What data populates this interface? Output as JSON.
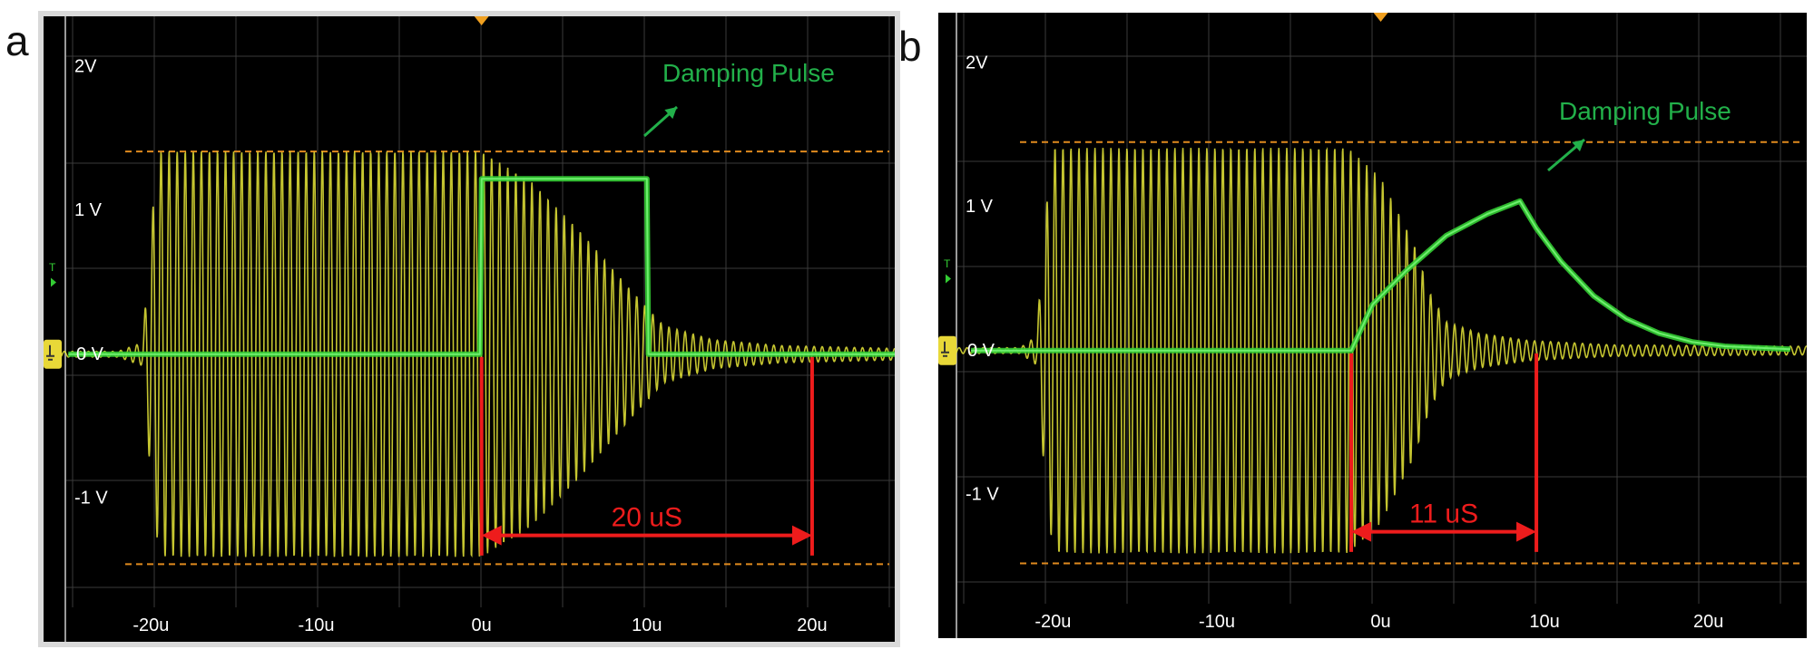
{
  "panels": [
    {
      "letter": "a",
      "annotation": "Damping Pulse",
      "span_label": "20 uS",
      "y_labels": [
        "2V",
        "1 V",
        "0 V",
        "-1 V"
      ],
      "trigger_marker": "T",
      "chart_data": {
        "type": "line",
        "x_unit": "us",
        "xlim": [
          -26.5,
          25
        ],
        "ylim": [
          -2.0,
          2.35
        ],
        "x_tick_labels": [
          {
            "x": -20,
            "label": "-20u"
          },
          {
            "x": -10,
            "label": "-10u"
          },
          {
            "x": 0,
            "label": "0u"
          },
          {
            "x": 10,
            "label": "10u"
          },
          {
            "x": 20,
            "label": "20u"
          }
        ],
        "y_tick_labels": [
          {
            "y": 2,
            "label": "2V"
          },
          {
            "y": 1,
            "label": "1 V"
          },
          {
            "y": 0,
            "label": "0 V"
          },
          {
            "y": -1,
            "label": "-1 V"
          }
        ],
        "threshold_levels": [
          1.41,
          -1.46
        ],
        "series": [
          {
            "color": "#e8e838",
            "kind": "oscillation-envelope",
            "envelope": [
              [
                -25,
                0.02
              ],
              [
                -22,
                0.02
              ],
              [
                -20.5,
                0.08
              ],
              [
                -20,
                0.9
              ],
              [
                -19.5,
                1.41
              ],
              [
                0,
                1.41
              ],
              [
                3,
                1.2
              ],
              [
                6,
                0.85
              ],
              [
                9,
                0.45
              ],
              [
                11,
                0.2
              ],
              [
                14,
                0.1
              ],
              [
                18,
                0.06
              ],
              [
                25,
                0.04
              ]
            ]
          },
          {
            "color": "#33cc33",
            "kind": "pulse",
            "points": [
              [
                -25,
                0
              ],
              [
                -0.1,
                0
              ],
              [
                0,
                1.22
              ],
              [
                10,
                1.22
              ],
              [
                10.1,
                0
              ],
              [
                25,
                0
              ]
            ]
          }
        ],
        "span_us": [
          0,
          20
        ],
        "span_y": -1.26
      }
    },
    {
      "letter": "b",
      "annotation": "Damping Pulse",
      "span_label": "11 uS",
      "y_labels": [
        "2V",
        "1 V",
        "0 V",
        "-1 V"
      ],
      "trigger_marker": "T",
      "chart_data": {
        "type": "line",
        "x_unit": "us",
        "xlim": [
          -27,
          26
        ],
        "ylim": [
          -2.0,
          2.35
        ],
        "x_tick_labels": [
          {
            "x": -20,
            "label": "-20u"
          },
          {
            "x": -10,
            "label": "-10u"
          },
          {
            "x": 0,
            "label": "0u"
          },
          {
            "x": 10,
            "label": "10u"
          },
          {
            "x": 20,
            "label": "20u"
          }
        ],
        "y_tick_labels": [
          {
            "y": 2,
            "label": "2V"
          },
          {
            "y": 1,
            "label": "1 V"
          },
          {
            "y": 0,
            "label": "0 V"
          },
          {
            "y": -1,
            "label": "-1 V"
          }
        ],
        "threshold_levels": [
          1.45,
          -1.48
        ],
        "series": [
          {
            "color": "#e8e838",
            "kind": "oscillation-envelope",
            "envelope": [
              [
                -25,
                0.02
              ],
              [
                -22,
                0.02
              ],
              [
                -21,
                0.1
              ],
              [
                -20.5,
                0.9
              ],
              [
                -20,
                1.41
              ],
              [
                -2,
                1.41
              ],
              [
                0,
                1.2
              ],
              [
                2,
                0.75
              ],
              [
                3,
                0.4
              ],
              [
                4,
                0.2
              ],
              [
                6,
                0.12
              ],
              [
                9,
                0.07
              ],
              [
                14,
                0.04
              ],
              [
                25,
                0.03
              ]
            ]
          },
          {
            "color": "#33cc33",
            "kind": "pulse",
            "points": [
              [
                -25,
                0
              ],
              [
                -1.8,
                0
              ],
              [
                -0.5,
                0.32
              ],
              [
                1.5,
                0.55
              ],
              [
                4,
                0.8
              ],
              [
                6.5,
                0.95
              ],
              [
                8.5,
                1.04
              ],
              [
                9.5,
                0.85
              ],
              [
                11,
                0.62
              ],
              [
                13,
                0.38
              ],
              [
                15,
                0.22
              ],
              [
                17,
                0.12
              ],
              [
                19,
                0.06
              ],
              [
                21,
                0.03
              ],
              [
                25,
                0.01
              ]
            ]
          }
        ],
        "span_us": [
          -1.8,
          9.5
        ],
        "span_y": -1.26
      }
    }
  ]
}
